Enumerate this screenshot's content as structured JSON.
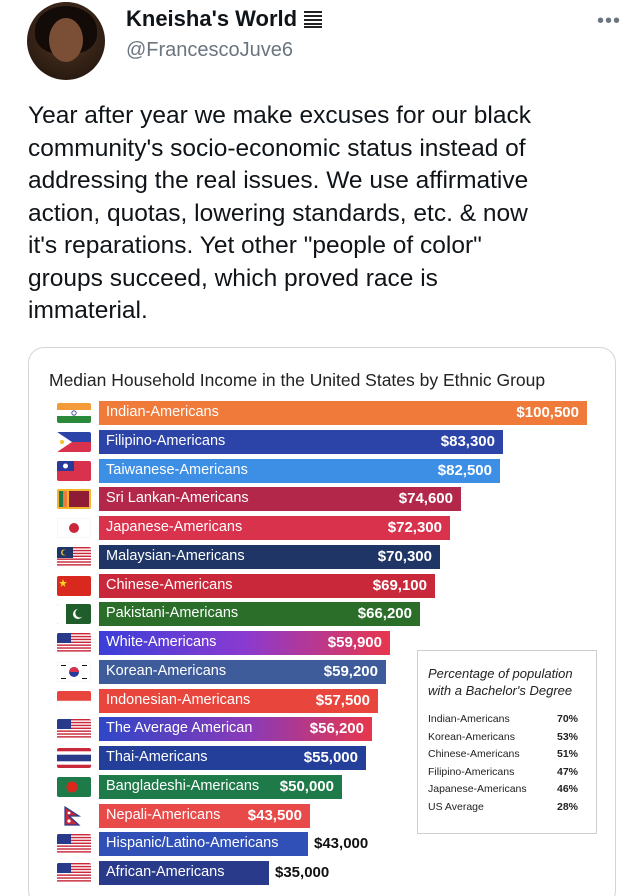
{
  "tweet": {
    "display_name": "Kneisha's World",
    "handle": "@FrancescoJuve6",
    "more_label": "•••",
    "text": "Year after year we make excuses for our black\ncommunity's socio-economic status instead of\naddressing the real issues. We use affirmative\naction, quotas, lowering standards, etc. & now\nit's reparations. Yet other \"people of color\"\ngroups succeed, which proved race is\nimmaterial."
  },
  "chart_data": {
    "type": "bar",
    "orientation": "horizontal",
    "title": "Median Household Income in the United States  by Ethnic Group",
    "xlim": [
      0,
      100500
    ],
    "categories": [
      "Indian-Americans",
      "Filipino-Americans",
      "Taiwanese-Americans",
      "Sri Lankan-Americans",
      "Japanese-Americans",
      "Malaysian-Americans",
      "Chinese-Americans",
      "Pakistani-Americans",
      "White-Americans",
      "Korean-Americans",
      "Indonesian-Americans",
      "The Average American",
      "Thai-Americans",
      "Bangladeshi-Americans",
      "Nepali-Americans",
      "Hispanic/Latino-Americans",
      "African-Americans"
    ],
    "values": [
      100500,
      83300,
      82500,
      74600,
      72300,
      70300,
      69100,
      66200,
      59900,
      59200,
      57500,
      56200,
      55000,
      50000,
      43500,
      43000,
      35000
    ],
    "value_labels": [
      "$100,500",
      "$83,300",
      "$82,500",
      "$74,600",
      "$72,300",
      "$70,300",
      "$69,100",
      "$66,200",
      "$59,900",
      "$59,200",
      "$57,500",
      "$56,200",
      "$55,000",
      "$50,000",
      "$43,500",
      "$43,000",
      "$35,000"
    ],
    "bar_colors": [
      "#f07a3a",
      "#2c44a8",
      "#3d8fe6",
      "#b3284a",
      "#d9324c",
      "#1e3566",
      "#c8283a",
      "#2a6e2a",
      "gradient-white",
      "#3e5c9a",
      "#e8453c",
      "gradient-average",
      "#243f9a",
      "#1f7a4a",
      "#e84a4a",
      "#3050b8",
      "#2a3a8a"
    ],
    "flags": [
      "india-flag-icon",
      "philippines-flag-icon",
      "taiwan-flag-icon",
      "sri-lanka-flag-icon",
      "japan-flag-icon",
      "malaysia-flag-icon",
      "china-flag-icon",
      "pakistan-flag-icon",
      "usa-flag-icon",
      "korea-flag-icon",
      "indonesia-flag-icon",
      "usa-flag-icon",
      "thailand-flag-icon",
      "bangladesh-flag-icon",
      "nepal-flag-icon",
      "usa-flag-icon",
      "usa-flag-icon"
    ],
    "inset": {
      "title": "Percentage of population with a Bachelor's Degree",
      "rows": [
        {
          "name": "Indian-Americans",
          "pct": "70%"
        },
        {
          "name": "Korean-Americans",
          "pct": "53%"
        },
        {
          "name": "Chinese-Americans",
          "pct": "51%"
        },
        {
          "name": "Filipino-Americans",
          "pct": "47%"
        },
        {
          "name": "Japanese-Americans",
          "pct": "46%"
        },
        {
          "name": "US Average",
          "pct": "28%"
        }
      ]
    }
  }
}
